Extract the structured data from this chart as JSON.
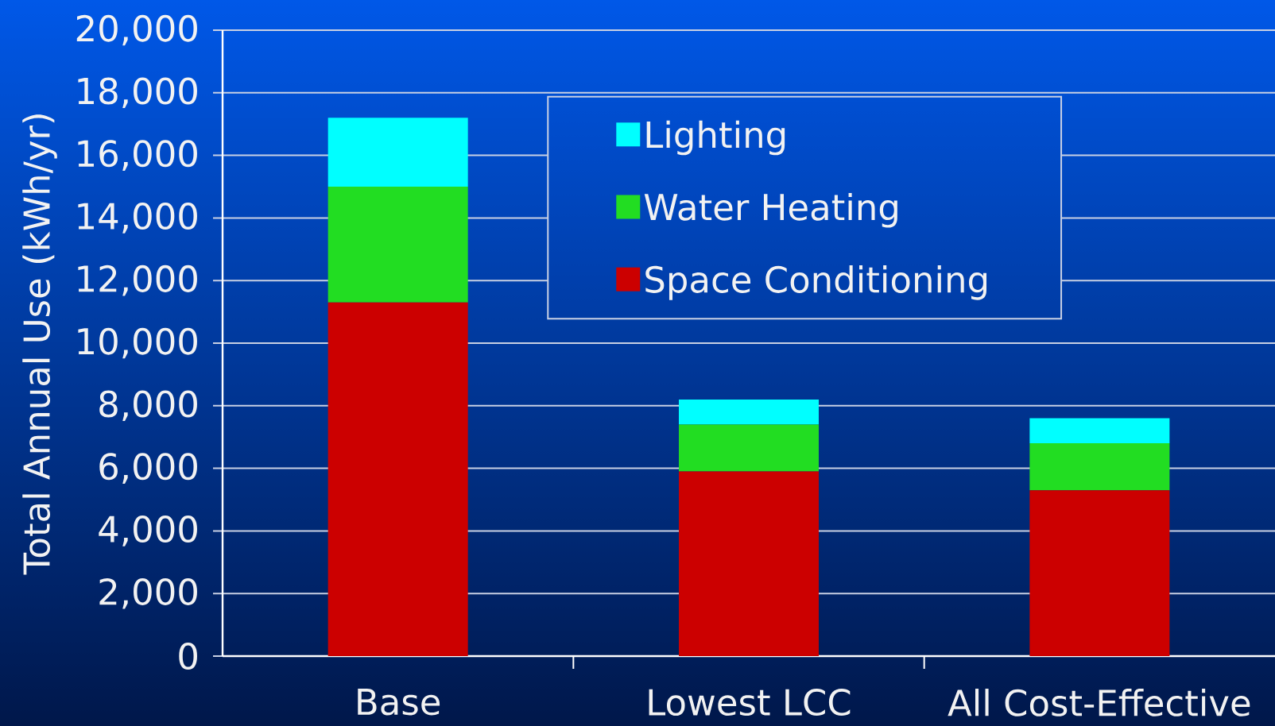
{
  "chart_data": {
    "type": "bar",
    "stacked": true,
    "ylabel": "Total Annual Use (kWh/yr)",
    "categories": [
      "Base",
      "Lowest LCC",
      "All Cost-Effective"
    ],
    "series": [
      {
        "name": "Space Conditioning",
        "color": "#cc0000",
        "values": [
          11300,
          5900,
          5300
        ]
      },
      {
        "name": "Water Heating",
        "color": "#22dd22",
        "values": [
          3700,
          1500,
          1500
        ]
      },
      {
        "name": "Lighting",
        "color": "#00ffff",
        "values": [
          2200,
          800,
          800
        ]
      }
    ],
    "ylim": [
      0,
      20000
    ],
    "yticks": [
      0,
      {
        "value": 2000,
        "label": "2,000"
      },
      {
        "value": 4000,
        "label": "4,000"
      },
      {
        "value": 6000,
        "label": "6,000"
      },
      {
        "value": 8000,
        "label": "8,000"
      },
      {
        "value": 10000,
        "label": "10,000"
      },
      {
        "value": 12000,
        "label": "12,000"
      },
      {
        "value": 14000,
        "label": "14,000"
      },
      {
        "value": 16000,
        "label": "16,000"
      },
      {
        "value": 18000,
        "label": "18,000"
      },
      {
        "value": 20000,
        "label": "20,000"
      }
    ],
    "grid": "y",
    "legend": "top"
  }
}
